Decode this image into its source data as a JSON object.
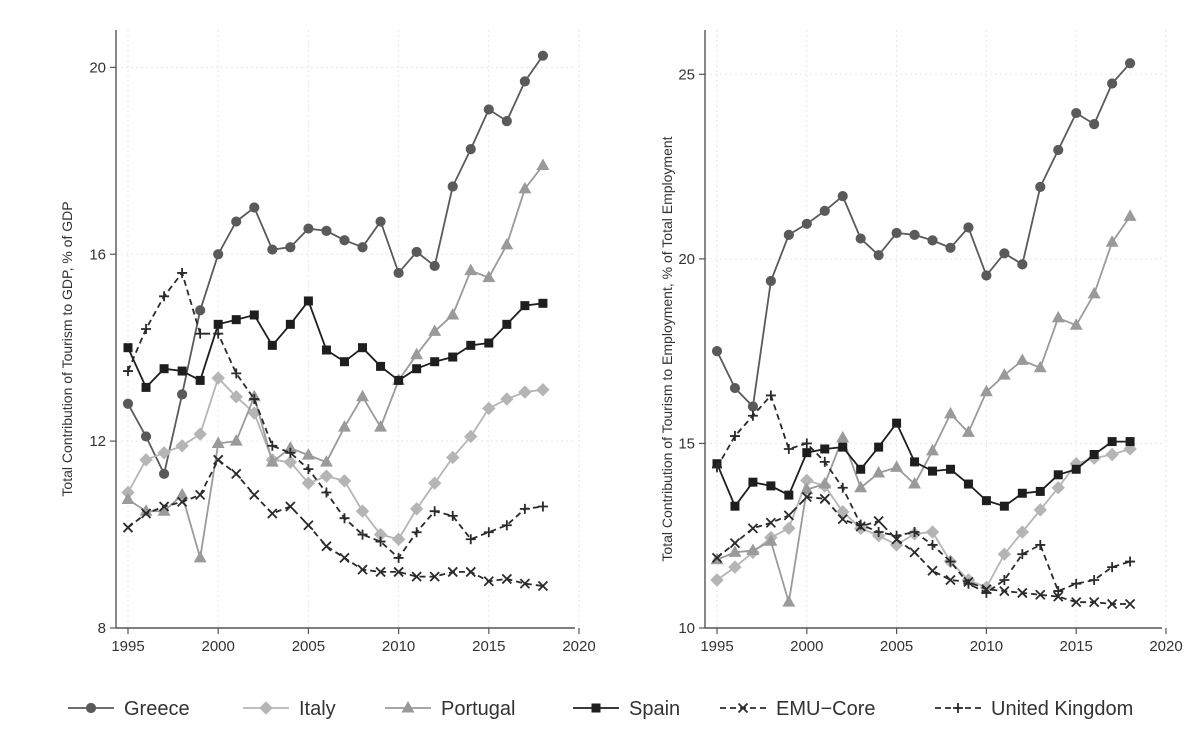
{
  "colors": {
    "Greece": "#5a5a5a",
    "Italy": "#b5b5b5",
    "Portugal": "#9a9a9a",
    "Spain": "#1e1e1e",
    "EMU-Core": "#2a2a2a",
    "United Kingdom": "#2a2a2a",
    "axis": "#555555",
    "grid": "#e6e6e6"
  },
  "legend": {
    "items": [
      "Greece",
      "Italy",
      "Portugal",
      "Spain",
      "EMU−Core",
      "United Kingdom"
    ]
  },
  "chart_data": [
    {
      "type": "line",
      "title": "",
      "xlabel": "",
      "ylabel": "Total Contribution of Tourism to GDP, % of GDP",
      "xlim": [
        1995,
        2020
      ],
      "ylim": [
        8,
        20.8
      ],
      "xticks": [
        1995,
        2000,
        2005,
        2010,
        2015,
        2020
      ],
      "yticks": [
        8,
        12,
        16,
        20
      ],
      "grid": true,
      "x": [
        1995,
        1996,
        1997,
        1998,
        1999,
        2000,
        2001,
        2002,
        2003,
        2004,
        2005,
        2006,
        2007,
        2008,
        2009,
        2010,
        2011,
        2012,
        2013,
        2014,
        2015,
        2016,
        2017,
        2018
      ],
      "series": [
        {
          "name": "Greece",
          "marker": "circle",
          "dash": "solid",
          "values": [
            12.8,
            12.1,
            11.3,
            13.0,
            14.8,
            16.0,
            16.7,
            17.0,
            16.1,
            16.15,
            16.55,
            16.5,
            16.3,
            16.15,
            16.7,
            15.6,
            16.05,
            15.75,
            17.45,
            18.25,
            19.1,
            18.85,
            19.7,
            20.25
          ]
        },
        {
          "name": "Italy",
          "marker": "diamond",
          "dash": "solid",
          "values": [
            10.9,
            11.6,
            11.75,
            11.9,
            12.15,
            13.35,
            12.95,
            12.6,
            11.6,
            11.55,
            11.1,
            11.25,
            11.15,
            10.5,
            10.0,
            9.9,
            10.55,
            11.1,
            11.65,
            12.1,
            12.7,
            12.9,
            13.05,
            13.1
          ]
        },
        {
          "name": "Portugal",
          "marker": "triangle",
          "dash": "solid",
          "values": [
            10.75,
            10.5,
            10.5,
            10.85,
            9.5,
            11.95,
            12.0,
            12.95,
            11.55,
            11.85,
            11.7,
            11.55,
            12.3,
            12.95,
            12.3,
            13.3,
            13.85,
            14.35,
            14.7,
            15.65,
            15.5,
            16.2,
            17.4,
            17.9
          ]
        },
        {
          "name": "Spain",
          "marker": "square",
          "dash": "solid",
          "values": [
            14.0,
            13.15,
            13.55,
            13.5,
            13.3,
            14.5,
            14.6,
            14.7,
            14.05,
            14.5,
            15.0,
            13.95,
            13.7,
            14.0,
            13.6,
            13.3,
            13.55,
            13.7,
            13.8,
            14.05,
            14.1,
            14.5,
            14.9,
            14.95
          ]
        },
        {
          "name": "EMU−Core",
          "marker": "x",
          "dash": "dashed",
          "values": [
            10.15,
            10.45,
            10.6,
            10.7,
            10.85,
            11.6,
            11.3,
            10.85,
            10.45,
            10.6,
            10.2,
            9.75,
            9.5,
            9.25,
            9.2,
            9.2,
            9.1,
            9.1,
            9.2,
            9.2,
            9.0,
            9.05,
            8.95,
            8.9
          ]
        },
        {
          "name": "United Kingdom",
          "marker": "plus",
          "dash": "dashed",
          "values": [
            13.5,
            14.4,
            15.1,
            15.6,
            14.3,
            14.3,
            13.45,
            12.9,
            11.9,
            11.75,
            11.4,
            10.9,
            10.35,
            10.0,
            9.85,
            9.5,
            10.05,
            10.5,
            10.4,
            9.9,
            10.05,
            10.2,
            10.55,
            10.6
          ]
        }
      ]
    },
    {
      "type": "line",
      "title": "",
      "xlabel": "",
      "ylabel": "Total Contribution of Tourism to Employment, % of Total Employment",
      "xlim": [
        1995,
        2020
      ],
      "ylim": [
        10,
        26.2
      ],
      "xticks": [
        1995,
        2000,
        2005,
        2010,
        2015,
        2020
      ],
      "yticks": [
        10,
        15,
        20,
        25
      ],
      "grid": true,
      "x": [
        1995,
        1996,
        1997,
        1998,
        1999,
        2000,
        2001,
        2002,
        2003,
        2004,
        2005,
        2006,
        2007,
        2008,
        2009,
        2010,
        2011,
        2012,
        2013,
        2014,
        2015,
        2016,
        2017,
        2018
      ],
      "series": [
        {
          "name": "Greece",
          "marker": "circle",
          "dash": "solid",
          "values": [
            17.5,
            16.5,
            16.0,
            19.4,
            20.65,
            20.95,
            21.3,
            21.7,
            20.55,
            20.1,
            20.7,
            20.65,
            20.5,
            20.3,
            20.85,
            19.55,
            20.15,
            19.85,
            21.95,
            22.95,
            23.95,
            23.65,
            24.75,
            25.3
          ]
        },
        {
          "name": "Italy",
          "marker": "diamond",
          "dash": "solid",
          "values": [
            11.3,
            11.65,
            12.05,
            12.45,
            12.7,
            14.0,
            13.85,
            13.15,
            12.7,
            12.5,
            12.25,
            12.55,
            12.6,
            11.8,
            11.3,
            11.1,
            12.0,
            12.6,
            13.2,
            13.8,
            14.45,
            14.6,
            14.7,
            14.85
          ]
        },
        {
          "name": "Portugal",
          "marker": "triangle",
          "dash": "solid",
          "values": [
            11.85,
            12.05,
            12.1,
            12.35,
            10.7,
            13.75,
            13.9,
            15.15,
            13.8,
            14.2,
            14.35,
            13.9,
            14.8,
            15.8,
            15.3,
            16.4,
            16.85,
            17.25,
            17.05,
            18.4,
            18.2,
            19.05,
            20.45,
            21.15
          ]
        },
        {
          "name": "Spain",
          "marker": "square",
          "dash": "solid",
          "values": [
            14.45,
            13.3,
            13.95,
            13.85,
            13.6,
            14.75,
            14.85,
            14.9,
            14.3,
            14.9,
            15.55,
            14.5,
            14.25,
            14.3,
            13.9,
            13.45,
            13.3,
            13.65,
            13.7,
            14.15,
            14.3,
            14.7,
            15.05,
            15.05
          ]
        },
        {
          "name": "EMU−Core",
          "marker": "x",
          "dash": "dashed",
          "values": [
            11.9,
            12.3,
            12.7,
            12.85,
            13.05,
            13.55,
            13.5,
            12.95,
            12.75,
            12.9,
            12.4,
            12.05,
            11.55,
            11.3,
            11.25,
            11.05,
            11.0,
            10.95,
            10.9,
            10.85,
            10.7,
            10.7,
            10.65,
            10.65
          ]
        },
        {
          "name": "United Kingdom",
          "marker": "plus",
          "dash": "dashed",
          "values": [
            14.35,
            15.2,
            15.75,
            16.3,
            14.85,
            15.0,
            14.5,
            13.8,
            12.8,
            12.6,
            12.5,
            12.6,
            12.25,
            11.8,
            11.2,
            10.95,
            11.3,
            12.0,
            12.25,
            11.0,
            11.2,
            11.3,
            11.65,
            11.8
          ]
        }
      ]
    }
  ]
}
